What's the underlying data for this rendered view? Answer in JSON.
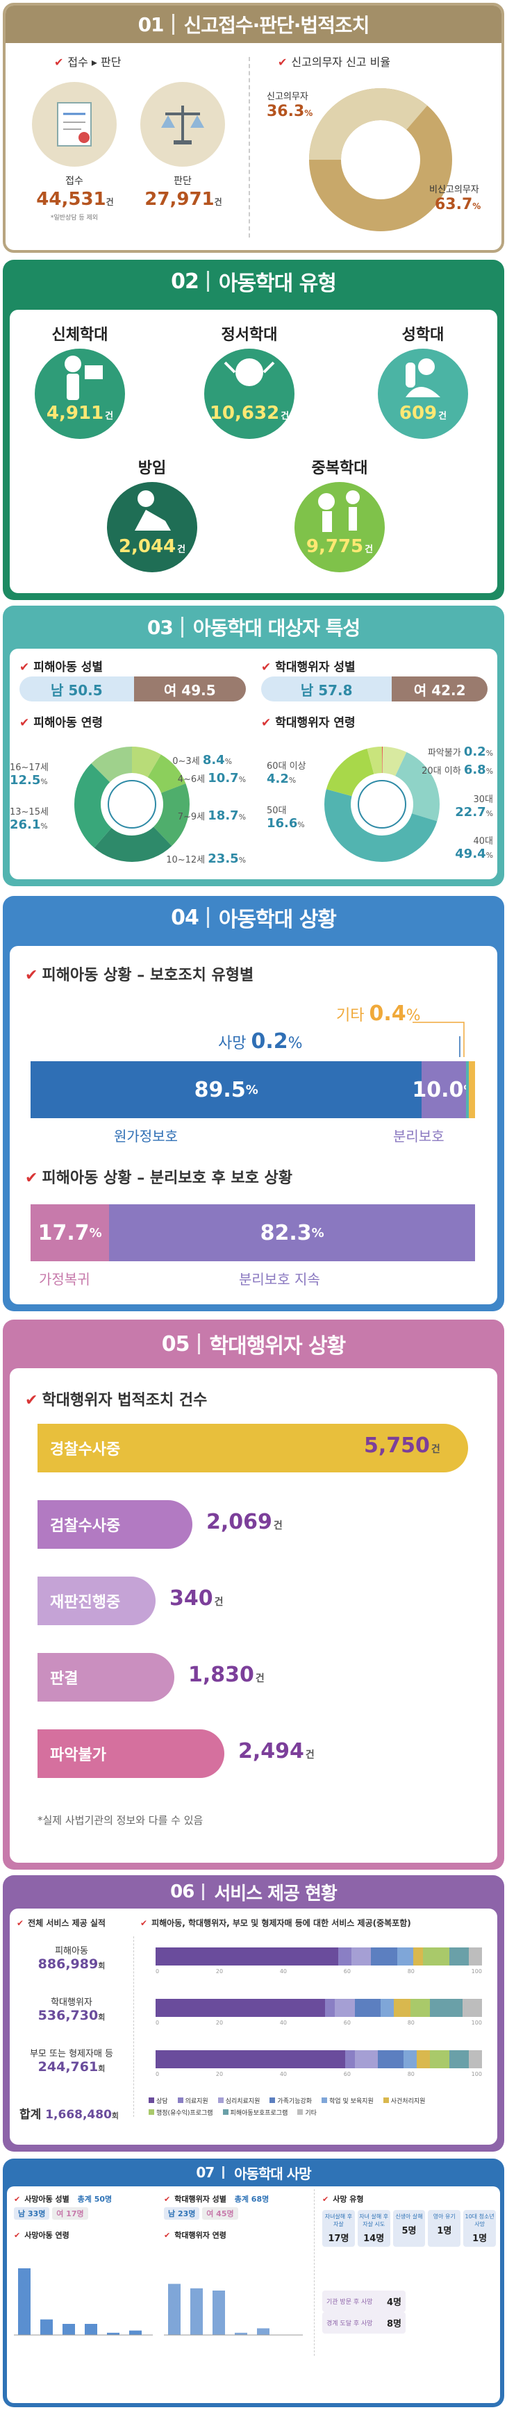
{
  "s1": {
    "num": "01",
    "title": "신고접수·판단·법적조치",
    "sub1": "접수 ▸ 판단",
    "sub2": "신고의무자 신고 비율",
    "receive_label": "접수",
    "receive_value": "44,531",
    "receive_unit": "건",
    "receive_note": "*일반상담 등 제외",
    "judge_label": "판단",
    "judge_value": "27,971",
    "judge_unit": "건",
    "obligated_label": "신고의무자",
    "obligated_value": "36.3",
    "non_obligated_label": "비신고의무자",
    "non_obligated_value": "63.7",
    "pct": "%",
    "colors": {
      "obligated": "#d8c9a3",
      "non_obligated": "#c8a86a"
    }
  },
  "s2": {
    "num": "02",
    "title": "아동학대 유형",
    "items": [
      {
        "label": "신체학대",
        "value": "4,911",
        "unit": "건"
      },
      {
        "label": "정서학대",
        "value": "10,632",
        "unit": "건"
      },
      {
        "label": "성학대",
        "value": "609",
        "unit": "건"
      },
      {
        "label": "방임",
        "value": "2,044",
        "unit": "건"
      },
      {
        "label": "중복학대",
        "value": "9,775",
        "unit": "건"
      }
    ]
  },
  "s3": {
    "num": "03",
    "title": "아동학대 대상자 특성",
    "victim_gender_title": "피해아동 성별",
    "victim_male": "남 50.5",
    "victim_female": "여 49.5",
    "perp_gender_title": "학대행위자 성별",
    "perp_male": "남 57.8",
    "perp_female": "여 42.2",
    "pct": "%",
    "victim_age_title": "피해아동 연령",
    "victim_ages": [
      {
        "label": "0~3세",
        "value": "8.4"
      },
      {
        "label": "4~6세",
        "value": "10.7"
      },
      {
        "label": "7~9세",
        "value": "18.7"
      },
      {
        "label": "10~12세",
        "value": "23.5"
      },
      {
        "label": "13~15세",
        "value": "26.1"
      },
      {
        "label": "16~17세",
        "value": "12.5"
      }
    ],
    "perp_age_title": "학대행위자 연령",
    "perp_ages": [
      {
        "label": "파악불가",
        "value": "0.2"
      },
      {
        "label": "20대 이하",
        "value": "6.8"
      },
      {
        "label": "30대",
        "value": "22.7"
      },
      {
        "label": "40대",
        "value": "49.4"
      },
      {
        "label": "50대",
        "value": "16.6"
      },
      {
        "label": "60대 이상",
        "value": "4.2"
      }
    ]
  },
  "s4": {
    "num": "04",
    "title": "아동학대 상황",
    "q1": "피해아동 상황 – 보호조치 유형별",
    "death_label": "사망",
    "death_value": "0.2",
    "other_label": "기타",
    "other_value": "0.4",
    "home_value": "89.5",
    "home_label": "원가정보호",
    "sep_value": "10.0",
    "sep_label": "분리보호",
    "q2": "피해아동 상황 – 분리보호 후 보호 상황",
    "return_value": "17.7",
    "return_label": "가정복귀",
    "cont_value": "82.3",
    "cont_label": "분리보호 지속",
    "pct": "%"
  },
  "s5": {
    "num": "05",
    "title": "학대행위자 상황",
    "q": "학대행위자 법적조치 건수",
    "items": [
      {
        "label": "경찰수사중",
        "value": "5,750"
      },
      {
        "label": "검찰수사중",
        "value": "2,069"
      },
      {
        "label": "재판진행중",
        "value": "340"
      },
      {
        "label": "판결",
        "value": "1,830"
      },
      {
        "label": "파악불가",
        "value": "2,494"
      }
    ],
    "unit": "건",
    "note": "*실제 사법기관의 정보와 다를 수 있음"
  },
  "s6": {
    "num": "06",
    "title": "서비스 제공 현황",
    "q1": "전체 서비스 제공 실적",
    "q2": "피해아동, 학대행위자, 부모 및 형제자매 등에 대한 서비스 제공(중복포함)",
    "rows": [
      {
        "label": "피해아동",
        "value": "886,989"
      },
      {
        "label": "학대행위자",
        "value": "536,730"
      },
      {
        "label": "부모 또는 형제자매 등",
        "value": "244,761"
      }
    ],
    "unit": "회",
    "total_label": "합계",
    "total_value": "1,668,480",
    "legend": [
      "상담",
      "의료지원",
      "심리치료지원",
      "가족기능강화",
      "학업 및 보육지원",
      "사건처리지원",
      "행정(유수익)프로그램",
      "피해아동보호프로그램",
      "기타"
    ],
    "ticks": [
      "0",
      "20",
      "40",
      "60",
      "80",
      "100"
    ],
    "colors": [
      "#6a4c9c",
      "#8a7fc4",
      "#a59fd4",
      "#5c7fc0",
      "#7fa6d8",
      "#d9b84e",
      "#a9c96a",
      "#6aa0a8",
      "#bdbdbd"
    ]
  },
  "s7": {
    "num": "07",
    "title": "아동학대 사망",
    "q1": "사망아동 성별",
    "total1": "총계 50명",
    "m1": "남 33명",
    "f1": "여 17명",
    "q2": "학대행위자 성별",
    "total2": "총계 68명",
    "m2": "남 23명",
    "f2": "여 45명",
    "q3": "사망 유형",
    "q4": "사망아동 연령",
    "q5": "학대행위자 연령",
    "death_types": [
      "자녀살해 후 자살",
      "자녀 살해 후 자살 시도",
      "신생아 살해",
      "영아 유기",
      "10대 청소년 사망"
    ],
    "death_values": [
      "17명",
      "14명",
      "5명",
      "1명",
      "1명"
    ],
    "sub_types": [
      "기관 방문 후 사망",
      "경계 도달 후 사망"
    ],
    "sub_values": [
      "4명",
      "8명"
    ]
  }
}
